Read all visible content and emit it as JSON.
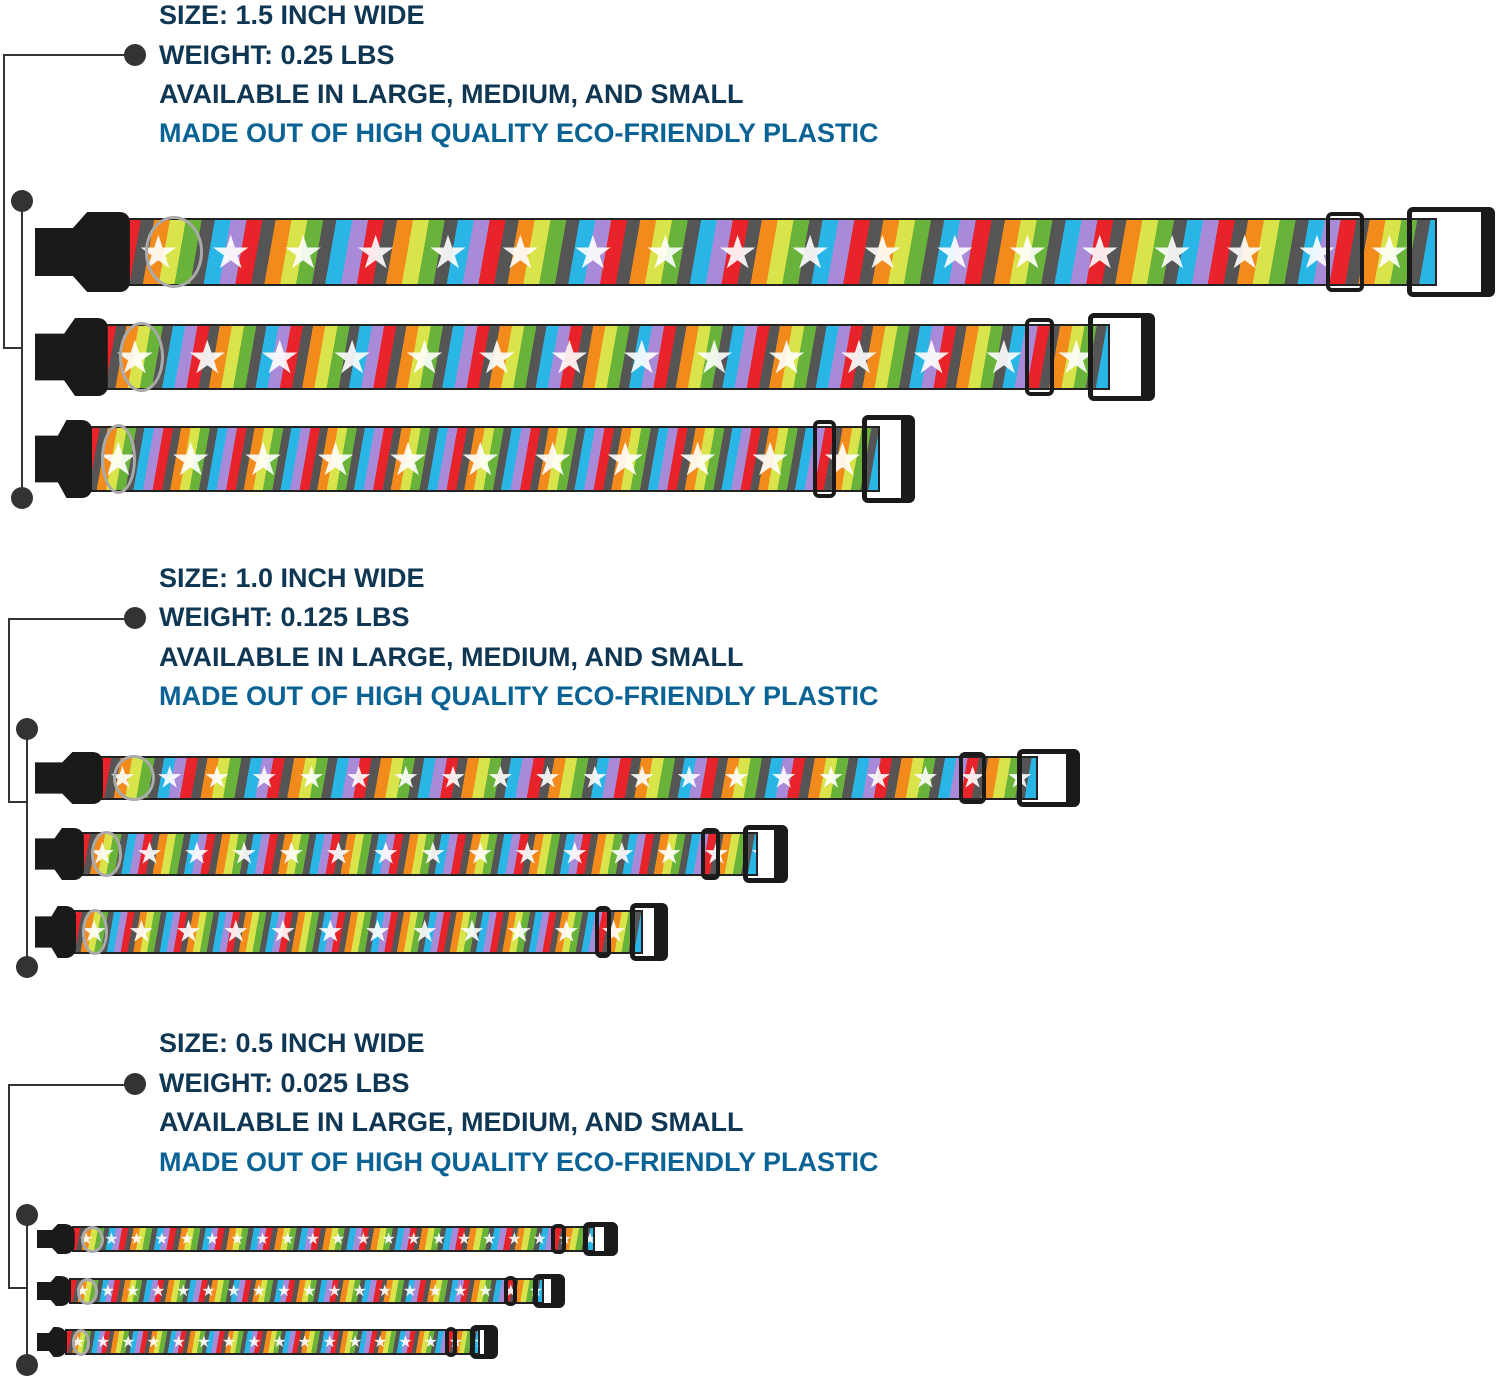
{
  "sections": [
    {
      "size": "SIZE: 1.5 INCH WIDE",
      "weight": "WEIGHT: 0.25 LBS",
      "availability": "AVAILABLE IN LARGE, MEDIUM, AND SMALL",
      "material": "MADE OUT OF HIGH QUALITY ECO-FRIENDLY PLASTIC"
    },
    {
      "size": "SIZE: 1.0 INCH WIDE",
      "weight": "WEIGHT: 0.125 LBS",
      "availability": "AVAILABLE IN LARGE, MEDIUM, AND SMALL",
      "material": "MADE OUT OF HIGH QUALITY ECO-FRIENDLY PLASTIC"
    },
    {
      "size": "SIZE: 0.5 INCH WIDE",
      "weight": "WEIGHT: 0.025 LBS",
      "availability": "AVAILABLE IN LARGE, MEDIUM, AND SMALL",
      "material": "MADE OUT OF HIGH QUALITY ECO-FRIENDLY PLASTIC"
    }
  ],
  "colors": {
    "text": "#0f3652",
    "accent_text": "#0b6395",
    "connector": "#333333"
  },
  "collar_pattern": "rainbow-stripes-with-white-stars"
}
